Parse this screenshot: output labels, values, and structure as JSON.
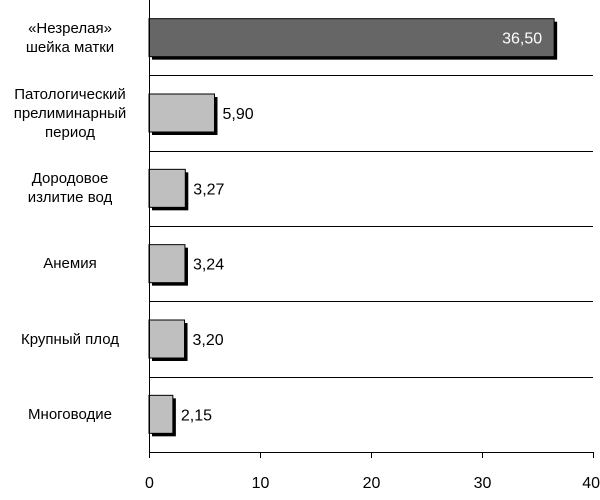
{
  "chart_data": {
    "type": "bar",
    "orientation": "horizontal",
    "categories": [
      "«Незрелая»\nшейка матки",
      "Патологический\nпрелиминарный\nпериод",
      "Дородовое\nизлитие вод",
      "Анемия",
      "Крупный плод",
      "Многоводие"
    ],
    "values": [
      36.5,
      5.9,
      3.27,
      3.24,
      3.2,
      2.15
    ],
    "data_labels": [
      "36,50",
      "5,90",
      "3,27",
      "3,24",
      "3,20",
      "2,15"
    ],
    "xlim": [
      0,
      40
    ],
    "x_ticks": [
      0,
      10,
      20,
      30,
      40
    ],
    "x_tick_labels": [
      "0",
      "10",
      "20",
      "30",
      "40"
    ],
    "grid": "horizontal separators between categories",
    "colors": {
      "highlight_bar": "#666666",
      "bar": "#bfbfbf",
      "bar_shadow": "#000000",
      "axis": "#000000",
      "highlight_label": "#ffffff"
    },
    "title": "",
    "xlabel": "",
    "ylabel": ""
  }
}
